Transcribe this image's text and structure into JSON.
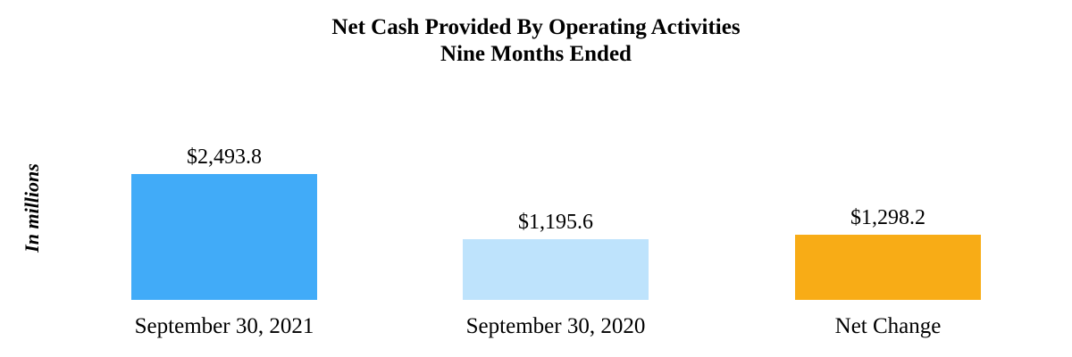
{
  "page": {
    "background": "#FFFFFF"
  },
  "chart_data": {
    "type": "bar",
    "title": "Net Cash Provided By Operating Activities",
    "subtitle": "Nine Months Ended",
    "ylabel": "In millions",
    "categories": [
      "September 30, 2021",
      "September 30, 2020",
      "Net Change"
    ],
    "values": [
      2493.8,
      1195.6,
      1298.2
    ],
    "value_labels": [
      "$2,493.8",
      "$1,195.6",
      "$1,298.2"
    ],
    "bar_colors": [
      "#41ABF8",
      "#BEE3FC",
      "#F8AC16"
    ],
    "ylim": [
      0,
      2500
    ],
    "grid": false,
    "axes_visible": false,
    "legend_position": "none"
  }
}
